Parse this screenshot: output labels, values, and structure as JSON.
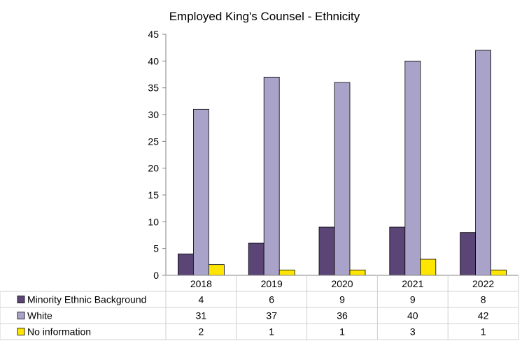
{
  "chart_data": {
    "type": "bar",
    "title": "Employed King's Counsel - Ethnicity",
    "categories": [
      "2018",
      "2019",
      "2020",
      "2021",
      "2022"
    ],
    "series": [
      {
        "name": "Minority Ethnic Background",
        "values": [
          4,
          6,
          9,
          9,
          8
        ],
        "color": "#5b4577"
      },
      {
        "name": "White",
        "values": [
          31,
          37,
          36,
          40,
          42
        ],
        "color": "#a9a3c9"
      },
      {
        "name": "No information",
        "values": [
          2,
          1,
          1,
          3,
          1
        ],
        "color": "#ffe600"
      }
    ],
    "ylim": [
      0,
      45
    ],
    "yticks": [
      "0",
      "5",
      "10",
      "15",
      "20",
      "25",
      "30",
      "35",
      "40",
      "45"
    ],
    "grid": false,
    "legend": "data-table-below"
  }
}
